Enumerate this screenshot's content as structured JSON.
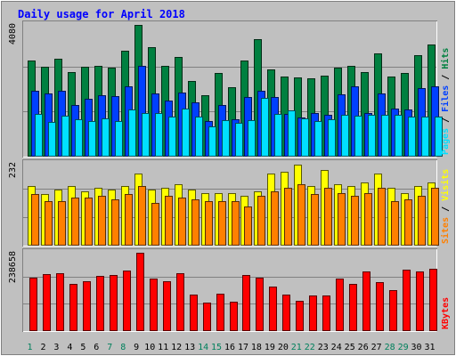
{
  "chart_data": {
    "type": "bar",
    "title": "Daily usage for April 2018",
    "x_labels": [
      "1",
      "2",
      "3",
      "4",
      "5",
      "6",
      "7",
      "8",
      "9",
      "10",
      "11",
      "12",
      "13",
      "14",
      "15",
      "16",
      "17",
      "18",
      "19",
      "20",
      "21",
      "22",
      "23",
      "24",
      "25",
      "26",
      "27",
      "28",
      "29",
      "30",
      "31"
    ],
    "weekend_days": [
      "1",
      "7",
      "8",
      "14",
      "15",
      "21",
      "22",
      "28",
      "29"
    ],
    "panels": [
      {
        "id": "hits-files-pages",
        "ymax_label": "4080",
        "ymax": 4080,
        "legend": [
          "Pages",
          "Files",
          "Hits"
        ],
        "series": [
          {
            "name": "Hits",
            "color": "#008040",
            "values": [
              2980,
              2780,
              3020,
              2620,
              2780,
              2800,
              2760,
              3290,
              4080,
              3380,
              2820,
              3080,
              2340,
              1910,
              2580,
              2140,
              2980,
              3650,
              2700,
              2470,
              2460,
              2430,
              2520,
              2770,
              2800,
              2610,
              3190,
              2490,
              2580,
              3140,
              3470
            ]
          },
          {
            "name": "Files",
            "color": "#0040ff",
            "values": [
              2040,
              1960,
              2040,
              1610,
              1780,
              1900,
              1880,
              2170,
              2800,
              1960,
              1730,
              1980,
              1670,
              1090,
              1610,
              1150,
              1860,
              2030,
              1850,
              1320,
              1210,
              1360,
              1290,
              1920,
              2170,
              1350,
              1950,
              1490,
              1450,
              2120,
              2170
            ]
          },
          {
            "name": "Pages",
            "color": "#00e0ff",
            "values": [
              1330,
              1080,
              1280,
              1160,
              1110,
              1180,
              1090,
              1450,
              1350,
              1350,
              1250,
              1480,
              1240,
              950,
              1130,
              1040,
              1120,
              1820,
              1310,
              1420,
              1180,
              1090,
              1170,
              1290,
              1280,
              1290,
              1290,
              1290,
              1240,
              1240,
              1240
            ]
          }
        ]
      },
      {
        "id": "visits-sites",
        "ymax_label": "232",
        "ymax": 232,
        "legend": [
          "Sites",
          "Visits"
        ],
        "series": [
          {
            "name": "Visits",
            "color": "#ffff00",
            "values": [
              170,
              145,
              160,
              170,
              155,
              165,
              160,
              170,
              205,
              160,
              165,
              175,
              160,
              150,
              150,
              150,
              140,
              155,
              205,
              210,
              230,
              170,
              215,
              175,
              170,
              180,
              205,
              165,
              150,
              170,
              180
            ]
          },
          {
            "name": "Sites",
            "color": "#ff8000",
            "values": [
              145,
              125,
              125,
              135,
              135,
              140,
              130,
              145,
              170,
              120,
              140,
              135,
              130,
              125,
              125,
              125,
              110,
              140,
              155,
              165,
              175,
              145,
              165,
              150,
              140,
              150,
              165,
              125,
              130,
              140,
              165
            ]
          }
        ]
      },
      {
        "id": "kbytes",
        "ymax_label": "238658",
        "ymax": 238658,
        "legend": [
          "KBytes"
        ],
        "series": [
          {
            "name": "KBytes",
            "color": "#ff0000",
            "values": [
              163000,
              173000,
              176000,
              144000,
              152000,
              168000,
              170000,
              185000,
              238658,
              159000,
              151000,
              175000,
              110000,
              87000,
              115000,
              90000,
              172000,
              163000,
              135000,
              110000,
              93000,
              109000,
              109000,
              160000,
              144000,
              181000,
              150000,
              124000,
              186000,
              181000,
              190000
            ]
          }
        ]
      }
    ],
    "grid": true
  },
  "colors": {
    "background": "#c0c0c0",
    "title": "#0000ff",
    "weekend_label": "#00805c",
    "weekday_label": "#000000"
  }
}
